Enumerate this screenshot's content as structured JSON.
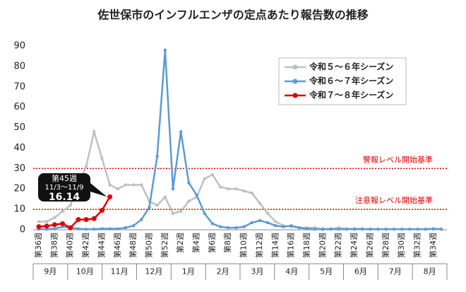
{
  "chart_data": {
    "type": "line",
    "title": "佐世保市のインフルエンザの定点あたり報告数の推移",
    "categories": [
      "第36週",
      null,
      "第38週",
      null,
      "第40週",
      null,
      "第42週",
      null,
      "第44週",
      null,
      "第46週",
      null,
      "第48週",
      null,
      "第50週",
      null,
      "第52週",
      null,
      "第2週",
      null,
      "第4週",
      null,
      "第6週",
      null,
      "第8週",
      null,
      "第10週",
      null,
      "第12週",
      null,
      "第14週",
      null,
      "第16週",
      null,
      "第18週",
      null,
      "第20週",
      null,
      "第22週",
      null,
      "第24週",
      null,
      "第26週",
      null,
      "第28週",
      null,
      "第30週",
      null,
      "第32週",
      null,
      "第34週",
      null
    ],
    "months": [
      "9月",
      "10月",
      "11月",
      "12月",
      "1月",
      "2月",
      "3月",
      "4月",
      "5月",
      "6月",
      "7月",
      "8月"
    ],
    "series": [
      {
        "name": "令和５～６年シーズン",
        "color": "#c0c0c0",
        "values": [
          4,
          4,
          6,
          9,
          12,
          22,
          31,
          48,
          35,
          22,
          20,
          22,
          22,
          22,
          14,
          12,
          16,
          8,
          9,
          14,
          16,
          25,
          27,
          21,
          20,
          20,
          19,
          18,
          13,
          8,
          4,
          2,
          1.5,
          1,
          1,
          1,
          0.5,
          0.5,
          1,
          0.5,
          0.5,
          0.5,
          0.3,
          0.3,
          0.3,
          0.3,
          0.3,
          0.3,
          0.3,
          0.3,
          0.3,
          0.3
        ]
      },
      {
        "name": "令和６～７年シーズン",
        "color": "#5b9bd5",
        "values": [
          0.3,
          0.3,
          0.5,
          1.5,
          1,
          0.5,
          0.3,
          0.3,
          0.5,
          0.5,
          0.5,
          1,
          2,
          5,
          11,
          36,
          88,
          20,
          48,
          23,
          17,
          8,
          3,
          1.5,
          1,
          1,
          1.5,
          3.5,
          4.5,
          3.5,
          2,
          1.5,
          2,
          1,
          0.5,
          0.3,
          0.2,
          0.3,
          0.3,
          0.3,
          0.3,
          0.3,
          0.3,
          0.3,
          0.3,
          0.3,
          0.3,
          0.3,
          0.3,
          0.3,
          0.5,
          0.3
        ]
      },
      {
        "name": "令和７～８年シーズン",
        "color": "#e00000",
        "values": [
          1.5,
          1.8,
          2.5,
          3,
          1,
          5,
          5,
          5.5,
          9.5,
          16.14,
          null,
          null,
          null,
          null,
          null,
          null,
          null,
          null,
          null,
          null,
          null,
          null,
          null,
          null,
          null,
          null,
          null,
          null,
          null,
          null,
          null,
          null,
          null,
          null,
          null,
          null,
          null,
          null,
          null,
          null,
          null,
          null,
          null,
          null,
          null,
          null,
          null,
          null,
          null,
          null,
          null,
          null
        ]
      }
    ],
    "ylim": [
      0,
      90
    ],
    "yticks": [
      0,
      10,
      20,
      30,
      40,
      50,
      60,
      70,
      80,
      90
    ],
    "grid": false,
    "reference_lines": [
      {
        "value": 30,
        "label": "警報レベル開始基準",
        "color": "#e00000"
      },
      {
        "value": 10,
        "label": "注意報レベル開始基準",
        "color": "#e00000"
      }
    ],
    "annotation": {
      "week": "第45週",
      "dates": "11/3～11/9",
      "value": "16.14"
    },
    "legend": "upper right"
  }
}
